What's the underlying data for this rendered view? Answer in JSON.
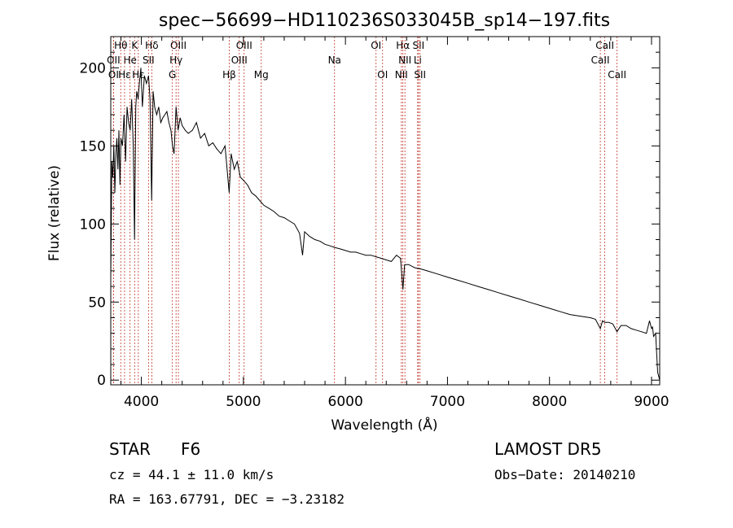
{
  "chart_data": {
    "type": "line",
    "title": "spec−56699−HD110236S033045B_sp14−197.fits",
    "xlabel": "Wavelength (Å)",
    "ylabel": "Flux (relative)",
    "xlim": [
      3700,
      9080
    ],
    "ylim": [
      -3,
      220
    ],
    "xticks": [
      4000,
      5000,
      6000,
      7000,
      8000,
      9000
    ],
    "yticks": [
      0,
      50,
      100,
      150,
      200
    ],
    "grid": false,
    "series": [
      {
        "values_note": "continuum-approximated spectrum",
        "x": [
          3700,
          3710,
          3720,
          3730,
          3740,
          3750,
          3760,
          3770,
          3780,
          3790,
          3800,
          3815,
          3830,
          3845,
          3860,
          3875,
          3890,
          3905,
          3920,
          3933,
          3945,
          3955,
          3968,
          3980,
          3995,
          4010,
          4030,
          4050,
          4070,
          4085,
          4101,
          4115,
          4130,
          4150,
          4170,
          4190,
          4210,
          4230,
          4250,
          4270,
          4290,
          4305,
          4320,
          4340,
          4360,
          4380,
          4400,
          4430,
          4460,
          4500,
          4540,
          4580,
          4620,
          4660,
          4700,
          4740,
          4780,
          4820,
          4861,
          4880,
          4910,
          4940,
          4970,
          5000,
          5040,
          5080,
          5120,
          5160,
          5200,
          5250,
          5300,
          5350,
          5400,
          5450,
          5500,
          5550,
          5580,
          5600,
          5650,
          5700,
          5750,
          5800,
          5850,
          5893,
          5950,
          6000,
          6050,
          6100,
          6150,
          6200,
          6250,
          6300,
          6350,
          6400,
          6450,
          6500,
          6540,
          6563,
          6580,
          6620,
          6680,
          6750,
          6800,
          6900,
          7000,
          7100,
          7200,
          7300,
          7400,
          7500,
          7600,
          7700,
          7800,
          7900,
          8000,
          8100,
          8200,
          8300,
          8400,
          8450,
          8498,
          8520,
          8542,
          8580,
          8620,
          8662,
          8700,
          8750,
          8800,
          8850,
          8900,
          8950,
          8980,
          9000,
          9010,
          9020,
          9040,
          9060,
          9080
        ],
        "y": [
          65,
          140,
          130,
          150,
          120,
          145,
          155,
          135,
          160,
          125,
          155,
          150,
          170,
          140,
          175,
          165,
          160,
          180,
          150,
          90,
          175,
          185,
          180,
          190,
          200,
          175,
          195,
          190,
          195,
          180,
          115,
          185,
          175,
          170,
          175,
          165,
          168,
          170,
          172,
          165,
          160,
          150,
          145,
          175,
          160,
          168,
          163,
          160,
          158,
          160,
          165,
          155,
          158,
          150,
          152,
          148,
          145,
          150,
          120,
          145,
          135,
          140,
          130,
          128,
          125,
          120,
          118,
          115,
          112,
          110,
          108,
          105,
          104,
          102,
          100,
          94,
          80,
          95,
          92,
          90,
          89,
          87,
          86,
          85,
          84,
          83,
          82,
          82,
          81,
          80,
          80,
          79,
          78,
          77,
          76,
          80,
          78,
          58,
          74,
          74,
          72,
          71,
          70,
          68,
          66,
          64,
          62,
          60,
          58,
          56,
          54,
          52,
          50,
          48,
          46,
          44,
          42,
          41,
          40,
          39,
          33,
          38,
          37,
          37,
          36,
          31,
          35,
          35,
          33,
          32,
          31,
          30,
          38,
          33,
          34,
          28,
          30,
          5,
          0
        ]
      }
    ],
    "lines": [
      {
        "label": "Hθ",
        "x": 3798,
        "row": 0
      },
      {
        "label": "K",
        "x": 3934,
        "row": 0
      },
      {
        "label": "Hδ",
        "x": 4102,
        "row": 0
      },
      {
        "label": "OIII",
        "x": 4363,
        "row": 0
      },
      {
        "label": "OIII",
        "x": 5007,
        "row": 0
      },
      {
        "label": "OI",
        "x": 6300,
        "row": 0
      },
      {
        "label": "Hα",
        "x": 6563,
        "row": 0
      },
      {
        "label": "SII",
        "x": 6716,
        "row": 0
      },
      {
        "label": "CaII",
        "x": 8542,
        "row": 0
      },
      {
        "label": "OII",
        "x": 3727,
        "row": 1
      },
      {
        "label": "He",
        "x": 3889,
        "row": 1
      },
      {
        "label": "SII",
        "x": 4070,
        "row": 1
      },
      {
        "label": "Hγ",
        "x": 4340,
        "row": 1
      },
      {
        "label": "OIII",
        "x": 4959,
        "row": 1
      },
      {
        "label": "Na",
        "x": 5893,
        "row": 1
      },
      {
        "label": "NII",
        "x": 6583,
        "row": 1
      },
      {
        "label": "Li",
        "x": 6708,
        "row": 1
      },
      {
        "label": "CaII",
        "x": 8498,
        "row": 1
      },
      {
        "label": "OI",
        "x": 3727,
        "row": 2
      },
      {
        "label": "Hε",
        "x": 3835,
        "row": 2
      },
      {
        "label": "Hε",
        "x": 3970,
        "row": 2
      },
      {
        "label": "G",
        "x": 4304,
        "row": 2
      },
      {
        "label": "Hβ",
        "x": 4861,
        "row": 2
      },
      {
        "label": "Mg",
        "x": 5175,
        "row": 2
      },
      {
        "label": "OI",
        "x": 6364,
        "row": 2
      },
      {
        "label": "NII",
        "x": 6548,
        "row": 2
      },
      {
        "label": "SII",
        "x": 6731,
        "row": 2
      },
      {
        "label": "CaII",
        "x": 8662,
        "row": 2
      }
    ]
  },
  "info": {
    "class_label": "STAR",
    "subclass": "F6",
    "survey": "LAMOST DR5",
    "cz": "cz = 44.1 ± 11.0 km/s",
    "obs_date": "Obs−Date: 20140210",
    "coords": "RA = 163.67791, DEC =  −3.23182"
  }
}
